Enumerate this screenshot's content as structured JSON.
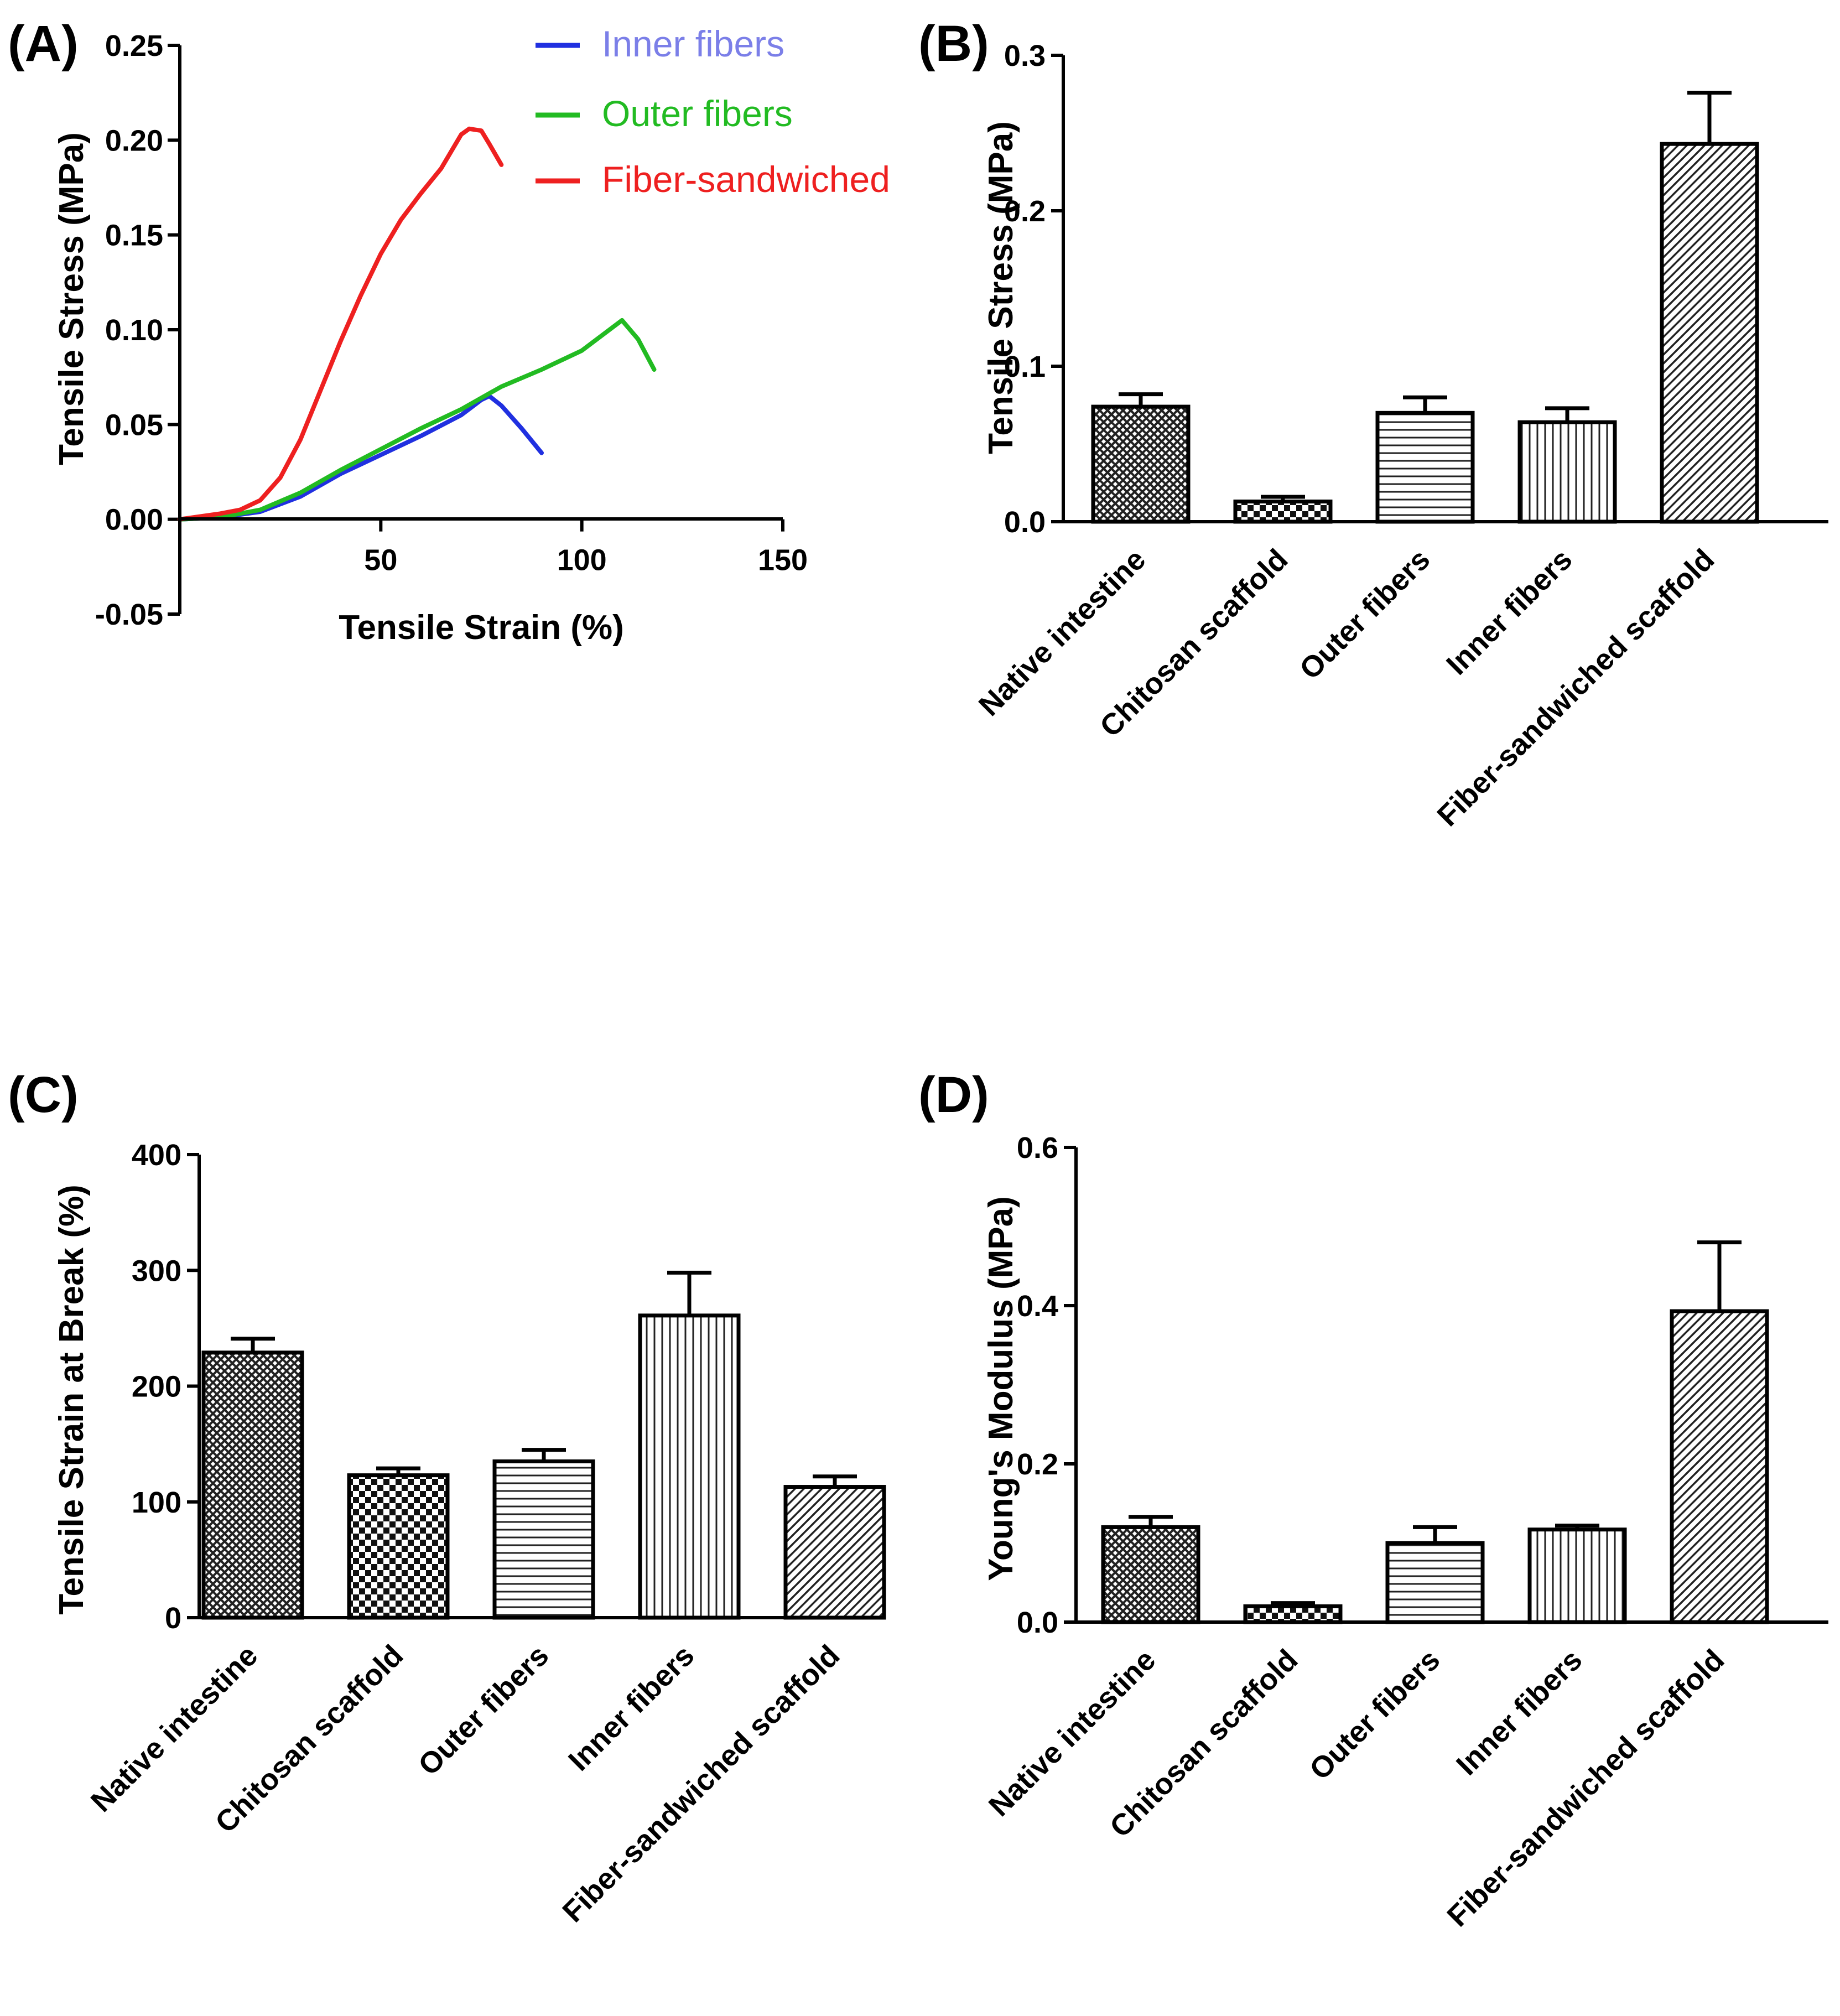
{
  "chart_data": [
    {
      "id": "A",
      "type": "line",
      "panel_label": "(A)",
      "xlabel": "Tensile Strain (%)",
      "ylabel": "Tensile Stress (MPa)",
      "xlim": [
        0,
        150
      ],
      "ylim": [
        -0.05,
        0.25
      ],
      "xticks": [
        50,
        100,
        150
      ],
      "xtick_labels": [
        "50",
        "100",
        "150"
      ],
      "yticks": [
        -0.05,
        0.0,
        0.05,
        0.1,
        0.15,
        0.2,
        0.25
      ],
      "ytick_labels": [
        "-0.05",
        "0.00",
        "0.05",
        "0.10",
        "0.15",
        "0.20",
        "0.25"
      ],
      "legend_position": "top-right",
      "series": [
        {
          "name": "Inner fibers",
          "color": "#2030e0",
          "label_color": "#7b7fe8",
          "x": [
            0,
            10,
            20,
            30,
            40,
            50,
            60,
            70,
            75,
            77,
            80,
            85,
            90
          ],
          "y": [
            0.0,
            0.001,
            0.004,
            0.012,
            0.024,
            0.034,
            0.044,
            0.055,
            0.063,
            0.065,
            0.06,
            0.048,
            0.035
          ]
        },
        {
          "name": "Outer fibers",
          "color": "#22bb22",
          "label_color": "#22bb22",
          "x": [
            0,
            10,
            20,
            30,
            40,
            50,
            60,
            70,
            80,
            90,
            100,
            105,
            110,
            114,
            118
          ],
          "y": [
            0.0,
            0.001,
            0.005,
            0.014,
            0.026,
            0.037,
            0.048,
            0.058,
            0.07,
            0.079,
            0.089,
            0.097,
            0.105,
            0.095,
            0.079
          ]
        },
        {
          "name": "Fiber-sandwiched",
          "color": "#ee2020",
          "label_color": "#ee2020",
          "x": [
            0,
            10,
            15,
            20,
            25,
            30,
            35,
            40,
            45,
            50,
            55,
            60,
            65,
            70,
            72,
            75,
            77,
            80
          ],
          "y": [
            0.0,
            0.003,
            0.005,
            0.01,
            0.022,
            0.042,
            0.068,
            0.094,
            0.118,
            0.14,
            0.158,
            0.172,
            0.185,
            0.203,
            0.206,
            0.205,
            0.198,
            0.187
          ]
        }
      ]
    },
    {
      "id": "B",
      "type": "bar",
      "panel_label": "(B)",
      "ylabel": "Tensile Stress (MPa)",
      "ylim": [
        0,
        0.3
      ],
      "yticks": [
        0.0,
        0.1,
        0.2,
        0.3
      ],
      "ytick_labels": [
        "0.0",
        "0.1",
        "0.2",
        "0.3"
      ],
      "categories": [
        "Native intestine",
        "Chitosan scaffold",
        "Outer fibers",
        "Inner fibers",
        "Fiber-sandwiched scaffold"
      ],
      "values": [
        0.074,
        0.013,
        0.07,
        0.064,
        0.243
      ],
      "errors": [
        0.008,
        0.003,
        0.01,
        0.009,
        0.033
      ],
      "patterns": [
        "crosshatch",
        "checker",
        "horizontal",
        "vertical",
        "diagonal"
      ]
    },
    {
      "id": "C",
      "type": "bar",
      "panel_label": "(C)",
      "ylabel": "Tensile Strain at Break (%)",
      "ylim": [
        0,
        400
      ],
      "yticks": [
        0,
        100,
        200,
        300,
        400
      ],
      "ytick_labels": [
        "0",
        "100",
        "200",
        "300",
        "400"
      ],
      "categories": [
        "Native intestine",
        "Chitosan scaffold",
        "Outer fibers",
        "Inner fibers",
        "Fiber-sandwiched scaffold"
      ],
      "values": [
        229,
        123,
        135,
        261,
        113
      ],
      "errors": [
        12,
        6,
        10,
        37,
        9
      ],
      "patterns": [
        "crosshatch",
        "checker",
        "horizontal",
        "vertical",
        "diagonal"
      ]
    },
    {
      "id": "D",
      "type": "bar",
      "panel_label": "(D)",
      "ylabel": "Young's Modulus (MPa)",
      "ylim": [
        0,
        0.6
      ],
      "yticks": [
        0.0,
        0.2,
        0.4,
        0.6
      ],
      "ytick_labels": [
        "0.0",
        "0.2",
        "0.4",
        "0.6"
      ],
      "categories": [
        "Native intestine",
        "Chitosan scaffold",
        "Outer fibers",
        "Inner fibers",
        "Fiber-sandwiched scaffold"
      ],
      "values": [
        0.12,
        0.02,
        0.1,
        0.117,
        0.393
      ],
      "errors": [
        0.013,
        0.004,
        0.02,
        0.005,
        0.087
      ],
      "patterns": [
        "crosshatch",
        "checker",
        "horizontal",
        "vertical",
        "diagonal"
      ]
    }
  ]
}
